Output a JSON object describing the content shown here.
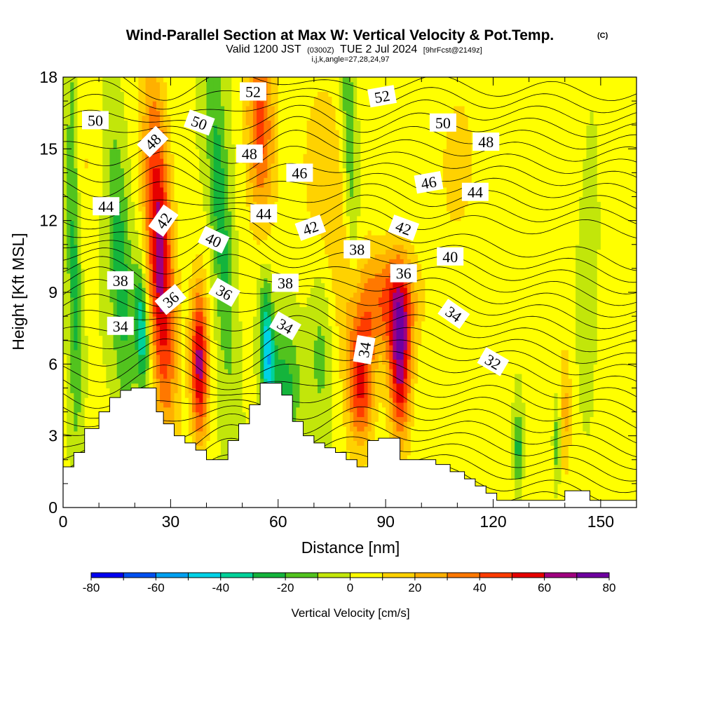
{
  "header": {
    "title": "Wind-Parallel Section at Max W: Vertical Velocity & Pot.Temp.",
    "copyright": "(C)",
    "valid_prefix": "Valid 1200 JST",
    "valid_utc": "(0300Z)",
    "valid_date": "TUE 2 Jul 2024",
    "forecast": "[9hrFcst@2149z]",
    "grid_info": "i,j,k,angle=27,28,24,97"
  },
  "chart_data": {
    "type": "heatmap",
    "title": "Wind-Parallel Section at Max W: Vertical Velocity & Pot.Temp.",
    "xlabel": "Distance [nm]",
    "ylabel": "Height [Kft MSL]",
    "xlim": [
      0,
      160
    ],
    "ylim": [
      0,
      18
    ],
    "x_ticks": [
      0,
      30,
      60,
      90,
      120,
      150
    ],
    "y_ticks": [
      0,
      3,
      6,
      9,
      12,
      15,
      18
    ],
    "colorbar": {
      "label": "Vertical Velocity [cm/s]",
      "min": -80,
      "max": 80,
      "step": 10,
      "tick_values": [
        -80,
        -60,
        -40,
        -20,
        0,
        20,
        40,
        60,
        80
      ],
      "colors": [
        "#0000f0",
        "#0050f0",
        "#00a0f0",
        "#00d2e6",
        "#00d29a",
        "#14b43c",
        "#52c31e",
        "#c2e60a",
        "#ffff00",
        "#ffd200",
        "#ffb000",
        "#ff7800",
        "#ff3c00",
        "#e60000",
        "#a00080",
        "#6e00a0"
      ]
    },
    "terrain_kft": [
      {
        "x": 0,
        "h": 1.7
      },
      {
        "x": 3,
        "h": 2.3
      },
      {
        "x": 6,
        "h": 3.3
      },
      {
        "x": 10,
        "h": 4.0
      },
      {
        "x": 13,
        "h": 4.6
      },
      {
        "x": 16,
        "h": 4.9
      },
      {
        "x": 19,
        "h": 5.0
      },
      {
        "x": 23,
        "h": 5.0
      },
      {
        "x": 26,
        "h": 4.0
      },
      {
        "x": 28,
        "h": 3.5
      },
      {
        "x": 31,
        "h": 3.0
      },
      {
        "x": 34,
        "h": 2.7
      },
      {
        "x": 37,
        "h": 2.4
      },
      {
        "x": 40,
        "h": 2.0
      },
      {
        "x": 43,
        "h": 2.0
      },
      {
        "x": 46,
        "h": 2.8
      },
      {
        "x": 49,
        "h": 3.5
      },
      {
        "x": 52,
        "h": 4.3
      },
      {
        "x": 55,
        "h": 5.2
      },
      {
        "x": 58,
        "h": 5.2
      },
      {
        "x": 61,
        "h": 4.7
      },
      {
        "x": 64,
        "h": 3.6
      },
      {
        "x": 67,
        "h": 3.0
      },
      {
        "x": 70,
        "h": 2.7
      },
      {
        "x": 73,
        "h": 2.5
      },
      {
        "x": 76,
        "h": 2.3
      },
      {
        "x": 79,
        "h": 2.0
      },
      {
        "x": 82,
        "h": 1.7
      },
      {
        "x": 85,
        "h": 2.8
      },
      {
        "x": 88,
        "h": 2.9
      },
      {
        "x": 91,
        "h": 2.9
      },
      {
        "x": 94,
        "h": 2.0
      },
      {
        "x": 100,
        "h": 2.0
      },
      {
        "x": 104,
        "h": 1.8
      },
      {
        "x": 108,
        "h": 1.5
      },
      {
        "x": 112,
        "h": 1.2
      },
      {
        "x": 115,
        "h": 0.9
      },
      {
        "x": 118,
        "h": 0.6
      },
      {
        "x": 121,
        "h": 0.3
      },
      {
        "x": 135,
        "h": 0.3
      },
      {
        "x": 140,
        "h": 0.7
      },
      {
        "x": 147,
        "h": 0.3
      },
      {
        "x": 155,
        "h": 0.3
      },
      {
        "x": 160,
        "h": 0.3
      }
    ],
    "updrafts": [
      {
        "x": 27,
        "y": 10.5,
        "w": 65,
        "sx": 2.6,
        "sy": 5.0,
        "tilt": 0.28
      },
      {
        "x": 38,
        "y": 6.0,
        "w": 62,
        "sx": 1.7,
        "sy": 2.3,
        "tilt": 0.05
      },
      {
        "x": 55,
        "y": 16.0,
        "w": 42,
        "sx": 2.8,
        "sy": 3.0,
        "tilt": 0.1
      },
      {
        "x": 83,
        "y": 5.3,
        "w": 52,
        "sx": 2.6,
        "sy": 1.9,
        "tilt": 0
      },
      {
        "x": 94,
        "y": 6.2,
        "w": 62,
        "sx": 2.2,
        "sy": 2.5,
        "tilt": 0
      },
      {
        "x": 90,
        "y": 8.7,
        "w": 35,
        "sx": 6.0,
        "sy": 1.5,
        "tilt": 0
      },
      {
        "x": 75,
        "y": 12.0,
        "w": 18,
        "sx": 6.0,
        "sy": 4.0,
        "tilt": 0.3
      },
      {
        "x": 140,
        "y": 4.0,
        "w": 22,
        "sx": 1.3,
        "sy": 2.0,
        "tilt": 0
      },
      {
        "x": 110,
        "y": 14.5,
        "w": 12,
        "sx": 5.0,
        "sy": 3.0,
        "tilt": 0
      },
      {
        "x": 144,
        "y": 15.0,
        "w": 12,
        "sx": 3.0,
        "sy": 3.0,
        "tilt": 0
      },
      {
        "x": 5,
        "y": 14.0,
        "w": 10,
        "sx": 2.5,
        "sy": 3.0,
        "tilt": 0
      }
    ],
    "downdrafts": [
      {
        "x": 3,
        "y": 11.0,
        "w": -28,
        "sx": 1.3,
        "sy": 6.0,
        "tilt": 0.1
      },
      {
        "x": 16,
        "y": 10.0,
        "w": -26,
        "sx": 2.2,
        "sy": 4.5,
        "tilt": 0.3
      },
      {
        "x": 22,
        "y": 7.5,
        "w": -42,
        "sx": 1.3,
        "sy": 1.8,
        "tilt": 0.2
      },
      {
        "x": 44,
        "y": 12.0,
        "w": -28,
        "sx": 2.0,
        "sy": 5.0,
        "tilt": 0.35
      },
      {
        "x": 57,
        "y": 6.5,
        "w": -48,
        "sx": 1.4,
        "sy": 2.0,
        "tilt": 0.2
      },
      {
        "x": 62,
        "y": 5.0,
        "w": -25,
        "sx": 3.0,
        "sy": 2.0,
        "tilt": 0
      },
      {
        "x": 80,
        "y": 15.0,
        "w": -26,
        "sx": 1.6,
        "sy": 4.0,
        "tilt": 0.25
      },
      {
        "x": 72,
        "y": 7.0,
        "w": -18,
        "sx": 2.5,
        "sy": 3.0,
        "tilt": 0
      },
      {
        "x": 127,
        "y": 2.5,
        "w": -28,
        "sx": 0.8,
        "sy": 1.2,
        "tilt": 0
      },
      {
        "x": 138,
        "y": 2.8,
        "w": -24,
        "sx": 0.7,
        "sy": 1.2,
        "tilt": 0
      },
      {
        "x": 146,
        "y": 12.0,
        "w": -15,
        "sx": 2.0,
        "sy": 4.0,
        "tilt": 0
      }
    ],
    "isentrope_labels": [
      {
        "text": "50",
        "x": 9,
        "y": 16.2,
        "angle": 0
      },
      {
        "text": "48",
        "x": 25,
        "y": 15.3,
        "angle": -45
      },
      {
        "text": "44",
        "x": 12,
        "y": 12.6,
        "angle": 0
      },
      {
        "text": "42",
        "x": 28,
        "y": 12.0,
        "angle": -55
      },
      {
        "text": "38",
        "x": 16,
        "y": 9.5,
        "angle": 0
      },
      {
        "text": "36",
        "x": 30,
        "y": 8.7,
        "angle": -40
      },
      {
        "text": "34",
        "x": 16,
        "y": 7.6,
        "angle": 0
      },
      {
        "text": "50",
        "x": 38,
        "y": 16.1,
        "angle": 20
      },
      {
        "text": "52",
        "x": 53,
        "y": 17.4,
        "angle": 0
      },
      {
        "text": "48",
        "x": 52,
        "y": 14.8,
        "angle": 0
      },
      {
        "text": "44",
        "x": 56,
        "y": 12.3,
        "angle": 0
      },
      {
        "text": "40",
        "x": 42,
        "y": 11.2,
        "angle": 25
      },
      {
        "text": "36",
        "x": 45,
        "y": 9.0,
        "angle": 30
      },
      {
        "text": "38",
        "x": 62,
        "y": 9.4,
        "angle": 0
      },
      {
        "text": "34",
        "x": 62,
        "y": 7.6,
        "angle": 30
      },
      {
        "text": "46",
        "x": 66,
        "y": 14.0,
        "angle": 0
      },
      {
        "text": "42",
        "x": 69,
        "y": 11.7,
        "angle": -20
      },
      {
        "text": "38",
        "x": 82,
        "y": 10.8,
        "angle": 0
      },
      {
        "text": "34",
        "x": 84,
        "y": 6.6,
        "angle": -80
      },
      {
        "text": "52",
        "x": 89,
        "y": 17.2,
        "angle": -10
      },
      {
        "text": "50",
        "x": 106,
        "y": 16.1,
        "angle": 0
      },
      {
        "text": "48",
        "x": 118,
        "y": 15.3,
        "angle": 0
      },
      {
        "text": "46",
        "x": 102,
        "y": 13.6,
        "angle": -10
      },
      {
        "text": "44",
        "x": 115,
        "y": 13.2,
        "angle": 0
      },
      {
        "text": "42",
        "x": 95,
        "y": 11.7,
        "angle": 20
      },
      {
        "text": "40",
        "x": 108,
        "y": 10.5,
        "angle": 0
      },
      {
        "text": "36",
        "x": 95,
        "y": 9.8,
        "angle": 0
      },
      {
        "text": "34",
        "x": 109,
        "y": 8.1,
        "angle": 35
      },
      {
        "text": "32",
        "x": 120,
        "y": 6.1,
        "angle": 30
      }
    ]
  }
}
